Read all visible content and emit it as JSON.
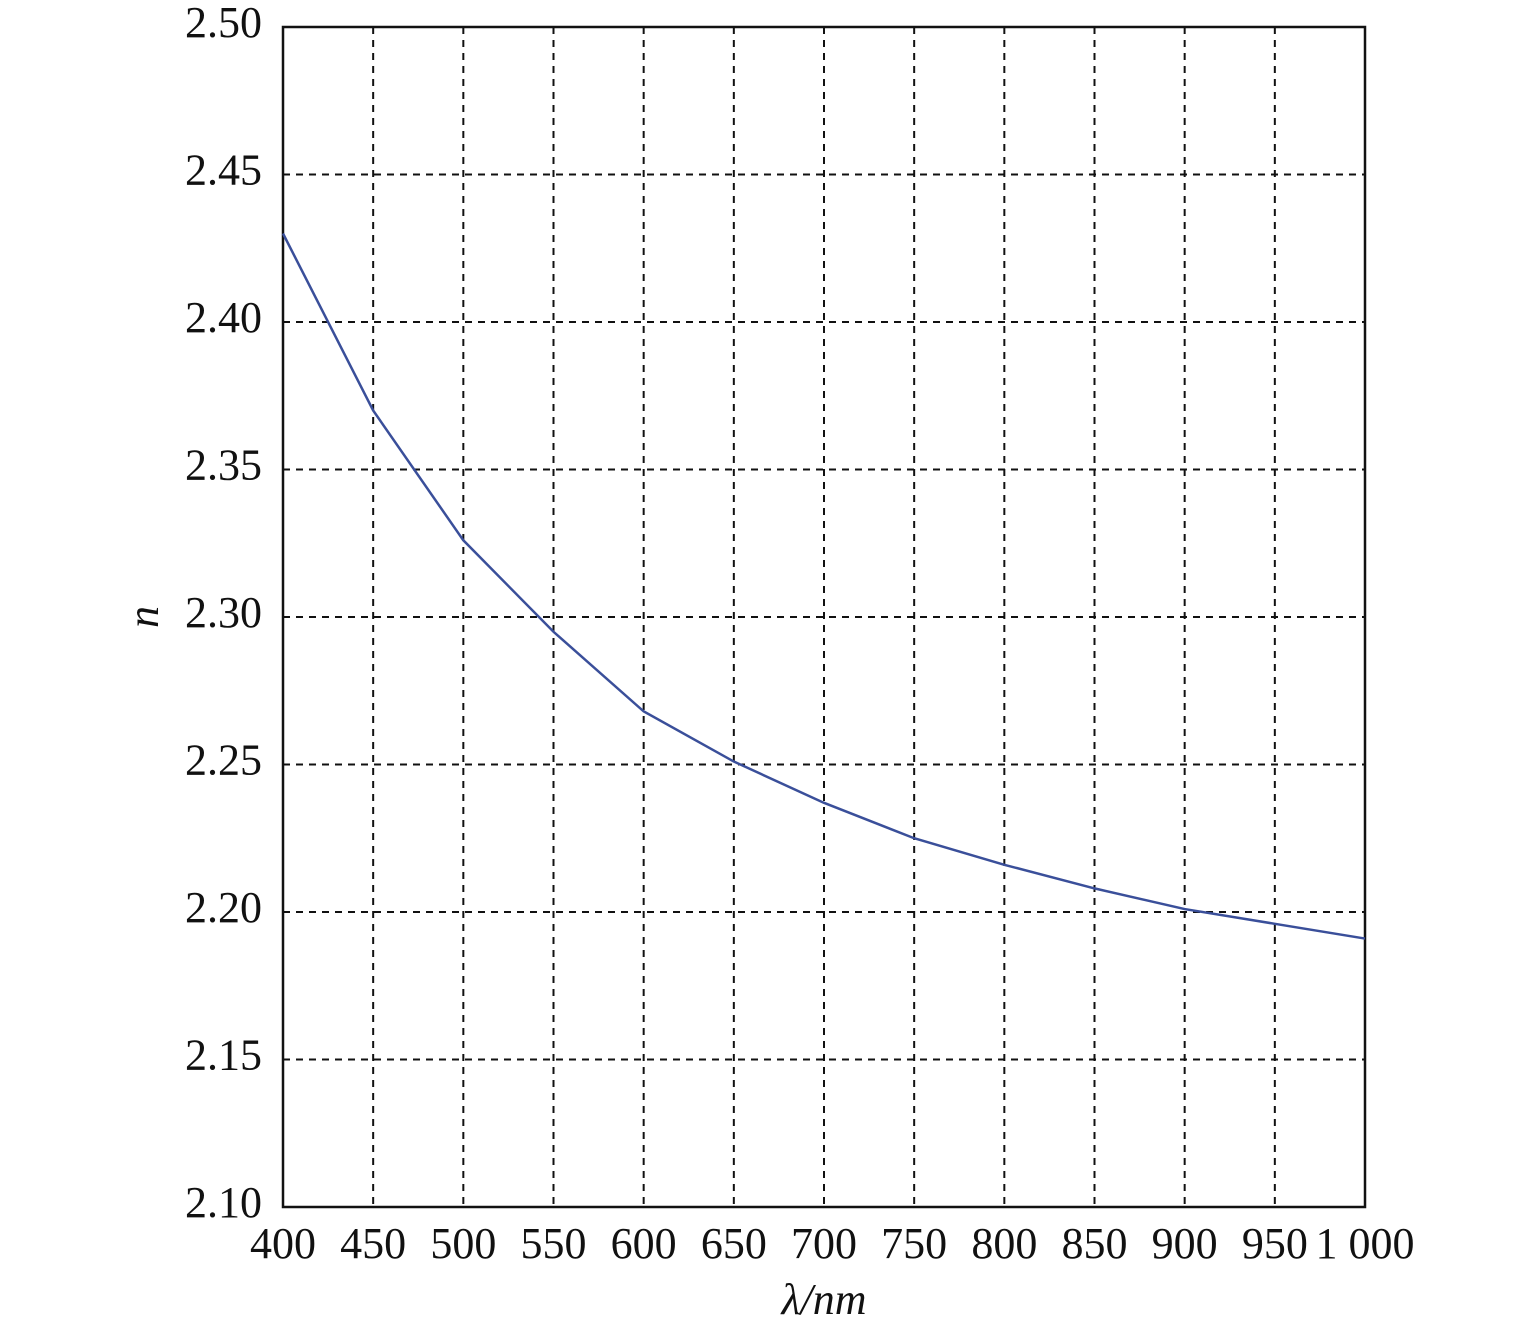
{
  "chart_data": {
    "type": "line",
    "x_label": "λ/nm",
    "y_label": "n",
    "x": [
      400,
      450,
      500,
      550,
      600,
      650,
      700,
      750,
      800,
      850,
      900,
      950,
      1000
    ],
    "series": [
      {
        "name": "n",
        "color": "#3a4f9a",
        "values": [
          2.43,
          2.37,
          2.326,
          2.295,
          2.268,
          2.251,
          2.237,
          2.225,
          2.216,
          2.208,
          2.201,
          2.196,
          2.191
        ]
      }
    ],
    "xlim": [
      400,
      1000
    ],
    "xticks": [
      400,
      450,
      500,
      550,
      600,
      650,
      700,
      750,
      800,
      850,
      900,
      950,
      {
        "value": 1000,
        "label": "1 000"
      }
    ],
    "ylim": [
      2.1,
      2.5
    ],
    "yticks": [
      {
        "value": 2.1,
        "label": "2.10"
      },
      {
        "value": 2.15,
        "label": "2.15"
      },
      {
        "value": 2.2,
        "label": "2.20"
      },
      {
        "value": 2.25,
        "label": "2.25"
      },
      {
        "value": 2.3,
        "label": "2.30"
      },
      {
        "value": 2.35,
        "label": "2.35"
      },
      {
        "value": 2.4,
        "label": "2.40"
      },
      {
        "value": 2.45,
        "label": "2.45"
      },
      {
        "value": 2.5,
        "label": "2.50"
      }
    ],
    "grid": true
  }
}
